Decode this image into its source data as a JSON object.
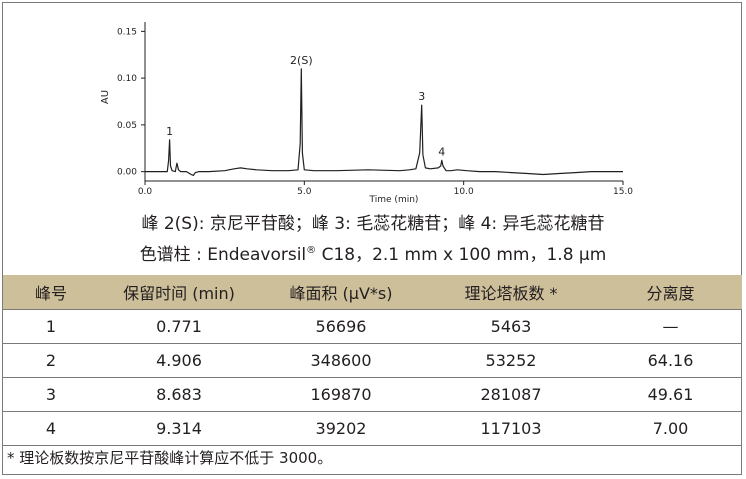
{
  "chart_data": {
    "type": "line",
    "ylabel": "AU",
    "xlabel": "Time (min)",
    "xlim": [
      0.0,
      15.0
    ],
    "ylim": [
      -0.01,
      0.16
    ],
    "xticks": [
      0.0,
      5.0,
      10.0,
      15.0
    ],
    "xtick_labels": [
      "0.0",
      "5.0",
      "10.0",
      "15.0"
    ],
    "yticks": [
      0.0,
      0.05,
      0.1,
      0.15
    ],
    "ytick_labels": [
      "0.00",
      "0.05",
      "0.10",
      "0.15"
    ],
    "grid": false,
    "series": [
      {
        "x": [
          0.0,
          0.5,
          0.7,
          0.74,
          0.771,
          0.8,
          0.85,
          0.95,
          1.0,
          1.05,
          1.12,
          1.3,
          1.45,
          1.52,
          1.58,
          1.7,
          2.0,
          2.5,
          2.8,
          3.0,
          3.2,
          3.5,
          4.0,
          4.5,
          4.8,
          4.87,
          4.906,
          4.94,
          5.0,
          5.3,
          6.0,
          7.0,
          8.0,
          8.3,
          8.5,
          8.62,
          8.683,
          8.72,
          8.8,
          8.95,
          9.2,
          9.28,
          9.314,
          9.35,
          9.45,
          9.6,
          9.8,
          10.1,
          10.5,
          11.0,
          11.5,
          12.0,
          12.5,
          13.0,
          13.5,
          14.0,
          14.3,
          14.6,
          15.0
        ],
        "y": [
          0.0,
          0.0,
          0.0,
          0.012,
          0.034,
          0.006,
          0.001,
          0.0,
          0.009,
          0.002,
          0.0,
          0.0,
          -0.003,
          -0.004,
          -0.001,
          0.0,
          0.0,
          0.001,
          0.003,
          0.004,
          0.003,
          0.002,
          0.001,
          0.001,
          0.002,
          0.03,
          0.11,
          0.02,
          0.002,
          0.001,
          0.001,
          0.002,
          0.001,
          0.002,
          0.003,
          0.02,
          0.071,
          0.018,
          0.004,
          0.003,
          0.004,
          0.006,
          0.012,
          0.006,
          0.001,
          0.001,
          0.002,
          0.001,
          0.0,
          0.0,
          -0.001,
          -0.002,
          -0.003,
          -0.002,
          -0.001,
          0.0,
          0.0,
          0.0,
          0.0
        ]
      }
    ],
    "annotations": [
      {
        "x": 0.771,
        "y": 0.034,
        "text": "1"
      },
      {
        "x": 4.906,
        "y": 0.11,
        "text": "2(S)"
      },
      {
        "x": 8.683,
        "y": 0.071,
        "text": "3"
      },
      {
        "x": 9.314,
        "y": 0.012,
        "text": "4"
      }
    ]
  },
  "caption": {
    "line1": "峰 2(S): 京尼平苷酸；峰 3: 毛蕊花糖苷；峰 4: 异毛蕊花糖苷",
    "line2_before_reg": "色谱柱 : Endeavorsil",
    "reg_mark": "®",
    "line2_after_reg": " C18，2.1 mm x 100 mm，1.8 µm"
  },
  "table": {
    "headers": [
      "峰号",
      "保留时间 (min)",
      "峰面积 (µV*s)",
      "理论塔板数 *",
      "分离度"
    ],
    "rows": [
      [
        "1",
        "0.771",
        "56696",
        "5463",
        "—"
      ],
      [
        "2",
        "4.906",
        "348600",
        "53252",
        "64.16"
      ],
      [
        "3",
        "8.683",
        "169870",
        "281087",
        "49.61"
      ],
      [
        "4",
        "9.314",
        "39202",
        "117103",
        "7.00"
      ]
    ]
  },
  "footnote": "* 理论板数按京尼平苷酸峰计算应不低于 3000。",
  "colors": {
    "header_bg": "#cdbf9a",
    "trace": "#231f20",
    "rule": "#7a7a7a"
  }
}
